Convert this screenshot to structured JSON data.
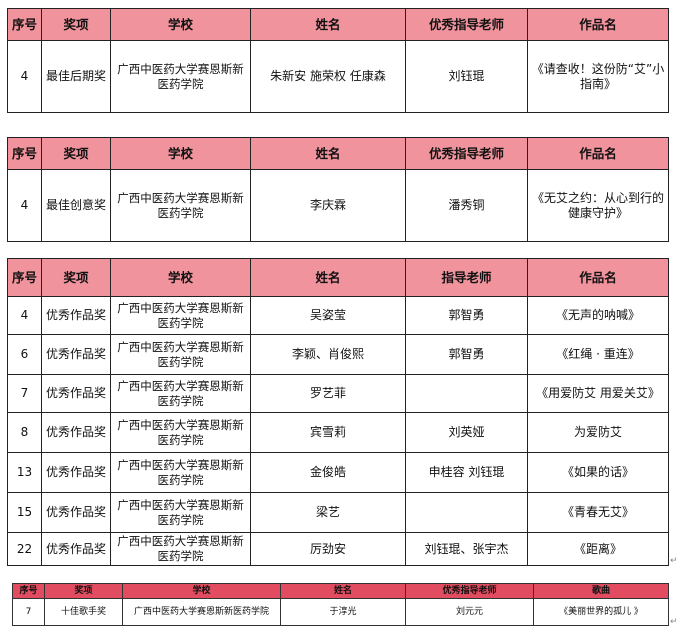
{
  "tables": [
    {
      "headers": [
        "序号",
        "奖项",
        "学校",
        "姓名",
        "优秀指导老师",
        "作品名"
      ],
      "rows": [
        [
          "4",
          "最佳后期奖",
          "广西中医药大学赛恩斯新医药学院",
          "朱新安  施荣权  任康森",
          "刘钰琨",
          "《请查收！这份防“艾”小指南》"
        ]
      ]
    },
    {
      "headers": [
        "序号",
        "奖项",
        "学校",
        "姓名",
        "优秀指导老师",
        "作品名"
      ],
      "rows": [
        [
          "4",
          "最佳创意奖",
          "广西中医药大学赛恩斯新医药学院",
          "李庆霖",
          "潘秀铜",
          "《无艾之约：从心到行的健康守护》"
        ]
      ]
    },
    {
      "headers": [
        "序号",
        "奖项",
        "学校",
        "姓名",
        "指导老师",
        "作品名"
      ],
      "rows": [
        [
          "4",
          "优秀作品奖",
          "广西中医药大学赛恩斯新医药学院",
          "吴姿莹",
          "郭智勇",
          "《无声的呐喊》"
        ],
        [
          "6",
          "优秀作品奖",
          "广西中医药大学赛恩斯新医药学院",
          "李颖、肖俊熙",
          "郭智勇",
          "《红绳 · 重连》"
        ],
        [
          "7",
          "优秀作品奖",
          "广西中医药大学赛恩斯新医药学院",
          "罗艺菲",
          "",
          "《用爱防艾   用爱关艾》"
        ],
        [
          "8",
          "优秀作品奖",
          "广西中医药大学赛恩斯新医药学院",
          "宾雪莉",
          "刘英娅",
          "为爱防艾"
        ],
        [
          "13",
          "优秀作品奖",
          "广西中医药大学赛恩斯新医药学院",
          "金俊皓",
          "申桂容  刘钰琨",
          "《如果的话》"
        ],
        [
          "15",
          "优秀作品奖",
          "广西中医药大学赛恩斯新医药学院",
          "梁艺",
          "",
          "《青春无艾》"
        ],
        [
          "22",
          "优秀作品奖",
          "广西中医药大学赛恩斯新医药学院",
          "厉劲安",
          "刘钰琨、张宇杰",
          "《距离》"
        ]
      ]
    },
    {
      "headers": [
        "序号",
        "奖项",
        "学校",
        "姓名",
        "优秀指导老师",
        "歌曲"
      ],
      "rows": [
        [
          "7",
          "十佳歌手奖",
          "广西中医药大学赛恩斯新医药学院",
          "于淳光",
          "刘元元",
          "《美丽世界的孤儿 》"
        ]
      ]
    }
  ],
  "paragraph_mark": "↵"
}
